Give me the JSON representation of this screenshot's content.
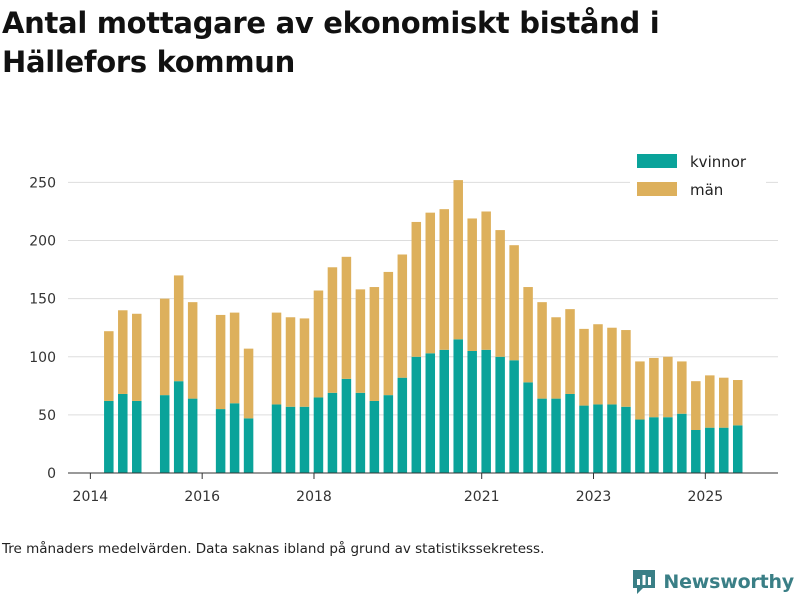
{
  "title": "Antal mottagare av ekonomiskt bistånd i Hällefors kommun",
  "footnote": "Tre månaders medelvärden. Data saknas ibland på grund av statistikssekretess.",
  "brand": {
    "name": "Newsworthy",
    "icon": "newsworthy-logo-icon",
    "color": "#3a7f86"
  },
  "colors": {
    "kvinnor": "#0aa39a",
    "man": "#ddb05c",
    "grid": "#dddddd",
    "axis": "#333333"
  },
  "chart_data": {
    "type": "bar",
    "stacked": true,
    "title": "Antal mottagare av ekonomiskt bistånd i Hällefors kommun",
    "xlabel": "",
    "ylabel": "",
    "ylim": [
      0,
      265
    ],
    "xlim": [
      2013.6,
      2026.3
    ],
    "yticks": [
      0,
      50,
      100,
      150,
      200,
      250
    ],
    "xticks": [
      {
        "value": 2014.0,
        "label": "2014"
      },
      {
        "value": 2016.0,
        "label": "2016"
      },
      {
        "value": 2018.0,
        "label": "2018"
      },
      {
        "value": 2021.0,
        "label": "2021"
      },
      {
        "value": 2023.0,
        "label": "2023"
      },
      {
        "value": 2025.0,
        "label": "2025"
      }
    ],
    "legend": {
      "placement": "top-right",
      "entries": [
        "kvinnor",
        "män"
      ]
    },
    "bar_width": 0.17,
    "x": [
      2014.33,
      2014.58,
      2014.83,
      2015.33,
      2015.58,
      2015.83,
      2016.33,
      2016.58,
      2016.83,
      2017.33,
      2017.58,
      2017.83,
      2018.08,
      2018.33,
      2018.58,
      2018.83,
      2019.08,
      2019.33,
      2019.58,
      2019.83,
      2020.08,
      2020.33,
      2020.58,
      2020.83,
      2021.08,
      2021.33,
      2021.58,
      2021.83,
      2022.08,
      2022.33,
      2022.58,
      2022.83,
      2023.08,
      2023.33,
      2023.58,
      2023.83,
      2024.08,
      2024.33,
      2024.58,
      2024.83,
      2025.08,
      2025.33,
      2025.58
    ],
    "series": [
      {
        "name": "kvinnor",
        "values": [
          62,
          68,
          62,
          67,
          79,
          64,
          55,
          60,
          47,
          59,
          57,
          57,
          65,
          69,
          81,
          69,
          62,
          67,
          82,
          100,
          103,
          106,
          115,
          105,
          106,
          100,
          97,
          78,
          64,
          64,
          68,
          58,
          59,
          59,
          57,
          46,
          48,
          48,
          51,
          37,
          39,
          39,
          41
        ]
      },
      {
        "name": "män",
        "values": [
          60,
          72,
          75,
          83,
          91,
          83,
          81,
          78,
          60,
          79,
          77,
          76,
          92,
          108,
          105,
          89,
          98,
          106,
          106,
          116,
          121,
          121,
          137,
          114,
          119,
          109,
          99,
          82,
          83,
          70,
          73,
          66,
          69,
          66,
          66,
          50,
          51,
          52,
          45,
          42,
          45,
          43,
          39
        ]
      }
    ]
  }
}
